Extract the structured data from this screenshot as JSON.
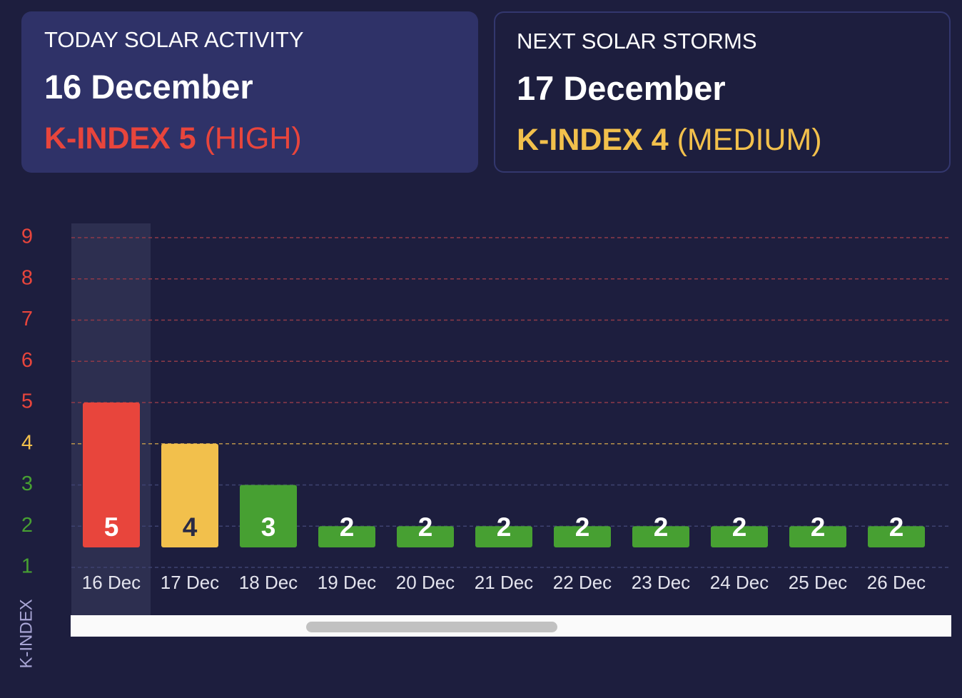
{
  "cards": [
    {
      "label": "TODAY SOLAR ACTIVITY",
      "date": "16 December",
      "index": "K-INDEX 5",
      "level": "(HIGH)",
      "color": "#e8453c"
    },
    {
      "label": "NEXT SOLAR STORMS",
      "date": "17 December",
      "index": "K-INDEX 4",
      "level": "(MEDIUM)",
      "color": "#f2c04c"
    }
  ],
  "chart_data": {
    "type": "bar",
    "y_label": "K-INDEX",
    "categories": [
      "16 Dec",
      "17 Dec",
      "18 Dec",
      "19 Dec",
      "20 Dec",
      "21 Dec",
      "22 Dec",
      "23 Dec",
      "24 Dec",
      "25 Dec",
      "26 Dec"
    ],
    "values": [
      5,
      4,
      3,
      2,
      2,
      2,
      2,
      2,
      2,
      2,
      2
    ],
    "colors": [
      "#e8453c",
      "#f2c04c",
      "#47a032",
      "#47a032",
      "#47a032",
      "#47a032",
      "#47a032",
      "#47a032",
      "#47a032",
      "#47a032",
      "#47a032"
    ],
    "ylim": [
      1,
      9
    ],
    "yticks": [
      1,
      2,
      3,
      4,
      5,
      6,
      7,
      8,
      9
    ],
    "ytick_colors": [
      "#47a032",
      "#47a032",
      "#47a032",
      "#f2c04c",
      "#e8453c",
      "#e8453c",
      "#e8453c",
      "#e8453c",
      "#e8453c"
    ],
    "grid": true
  }
}
